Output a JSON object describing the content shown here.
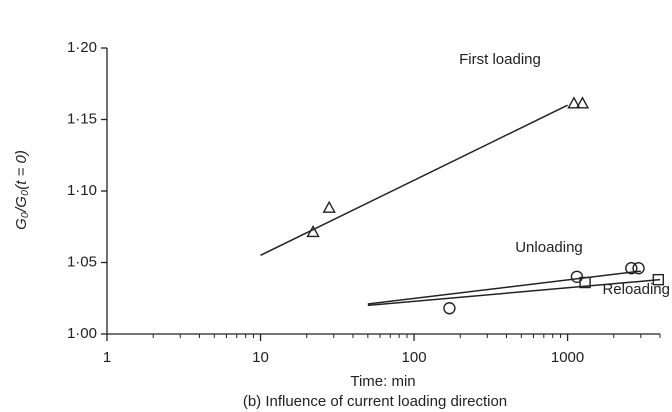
{
  "chart_data": {
    "type": "scatter",
    "xlabel": "Time: min",
    "ylabel": "G₀/G₀(t = 0)",
    "caption": "(b) Influence of current loading direction",
    "xscale": "log",
    "xlim": [
      1,
      4000
    ],
    "ylim": [
      1.0,
      1.2
    ],
    "xticks": [
      1,
      10,
      100,
      1000
    ],
    "xminorticks": [
      2,
      3,
      4,
      5,
      6,
      7,
      8,
      9,
      20,
      30,
      40,
      50,
      60,
      70,
      80,
      90,
      200,
      300,
      400,
      500,
      600,
      700,
      800,
      900,
      2000,
      3000,
      4000
    ],
    "yticks": [
      {
        "value": 1.0,
        "label": "1·00"
      },
      {
        "value": 1.05,
        "label": "1·05"
      },
      {
        "value": 1.1,
        "label": "1·10"
      },
      {
        "value": 1.15,
        "label": "1·15"
      },
      {
        "value": 1.2,
        "label": "1·20"
      }
    ],
    "color": "#222222",
    "series": [
      {
        "name": "First loading",
        "marker": "triangle",
        "x": [
          22,
          28,
          1100,
          1250
        ],
        "values": [
          1.071,
          1.088,
          1.161,
          1.161
        ]
      },
      {
        "name": "Unloading",
        "marker": "circle",
        "x": [
          170,
          1150,
          2600,
          2900
        ],
        "values": [
          1.018,
          1.04,
          1.046,
          1.046
        ]
      },
      {
        "name": "Reloading",
        "marker": "square",
        "x": [
          1300,
          3900
        ],
        "values": [
          1.036,
          1.038
        ]
      }
    ],
    "fit_lines": [
      {
        "x": [
          10,
          1000
        ],
        "values": [
          1.055,
          1.16
        ]
      },
      {
        "x": [
          50,
          3000
        ],
        "values": [
          1.021,
          1.044
        ]
      },
      {
        "x": [
          50,
          4000
        ],
        "values": [
          1.02,
          1.038
        ]
      }
    ]
  }
}
